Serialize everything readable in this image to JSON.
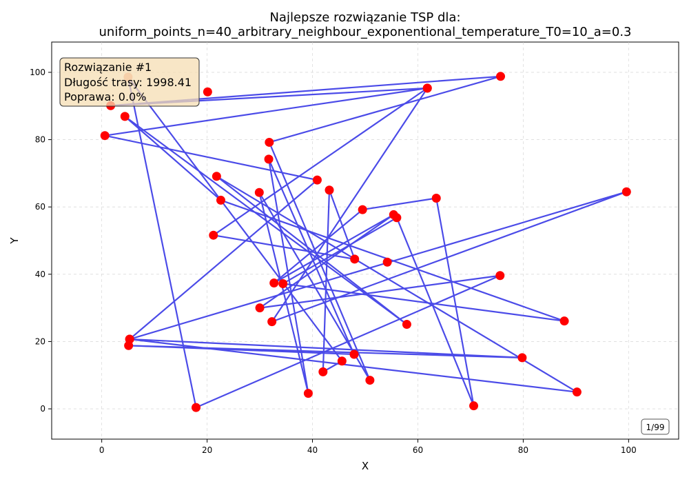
{
  "chart_data": {
    "type": "line",
    "title_line1": "Najlepsze rozwiązanie TSP dla:",
    "title_line2": "uniform_points_n=40_arbitrary_neighbour_exponentional_temperature_T0=10_a=0.3",
    "xlabel": "X",
    "ylabel": "Y",
    "xlim": [
      -9.5,
      109.5
    ],
    "ylim": [
      -9,
      109
    ],
    "xticks": [
      0,
      20,
      40,
      60,
      80,
      100
    ],
    "yticks": [
      0,
      20,
      40,
      60,
      80,
      100
    ],
    "grid": true,
    "colors": {
      "route": "#4b4be8",
      "point": "#ff0000",
      "start_point": "#f7a38a"
    },
    "info_box": {
      "line1": "Rozwiązanie #1",
      "line2": "Długość trasy: 1998.41",
      "line3": "Poprawa: 0.0%"
    },
    "counter": "1/99",
    "route": [
      [
        5.0,
        98.6
      ],
      [
        17.9,
        0.4
      ],
      [
        75.6,
        39.6
      ],
      [
        30.0,
        30.0
      ],
      [
        55.4,
        57.7
      ],
      [
        32.7,
        37.4
      ],
      [
        49.5,
        59.2
      ],
      [
        63.5,
        62.6
      ],
      [
        70.6,
        0.9
      ],
      [
        56.0,
        56.8
      ],
      [
        34.4,
        37.2
      ],
      [
        87.8,
        26.1
      ],
      [
        22.6,
        62.0
      ],
      [
        4.4,
        86.9
      ],
      [
        57.9,
        25.1
      ],
      [
        21.8,
        69.1
      ],
      [
        90.2,
        5.0
      ],
      [
        5.3,
        20.7
      ],
      [
        79.8,
        15.2
      ],
      [
        5.1,
        18.8
      ],
      [
        47.9,
        16.2
      ],
      [
        31.7,
        74.2
      ],
      [
        39.2,
        4.6
      ],
      [
        29.9,
        64.3
      ],
      [
        50.9,
        8.5
      ],
      [
        31.8,
        79.2
      ],
      [
        75.7,
        98.8
      ],
      [
        1.7,
        90.1
      ],
      [
        61.8,
        95.3
      ],
      [
        32.3,
        25.9
      ],
      [
        99.6,
        64.5
      ],
      [
        5.3,
        20.7
      ],
      [
        40.9,
        68.0
      ],
      [
        0.6,
        81.2
      ],
      [
        61.8,
        95.3
      ],
      [
        21.2,
        51.6
      ],
      [
        48.0,
        44.5
      ],
      [
        43.2,
        65.0
      ],
      [
        42.0,
        11.0
      ],
      [
        45.6,
        14.2
      ]
    ],
    "extra_points": [
      [
        20.1,
        94.2
      ],
      [
        54.2,
        43.6
      ]
    ]
  }
}
